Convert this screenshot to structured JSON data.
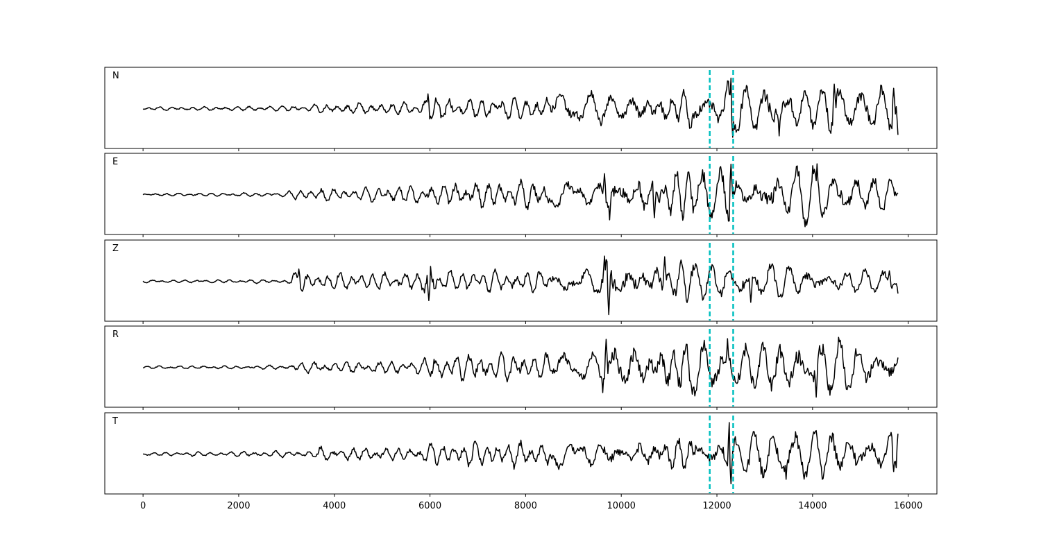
{
  "chart_data": {
    "type": "line",
    "title": "",
    "xlabel": "",
    "ylabel": "",
    "xlim": [
      -800,
      16600
    ],
    "x_ticks": [
      0,
      2000,
      4000,
      6000,
      8000,
      10000,
      12000,
      14000,
      16000
    ],
    "x_tick_labels": [
      "0",
      "2000",
      "4000",
      "6000",
      "8000",
      "10000",
      "12000",
      "14000",
      "16000"
    ],
    "x_range": [
      0,
      15800
    ],
    "grid": false,
    "legend": "none",
    "trace_color": "#000000",
    "marker_color": "#00bfbf",
    "vertical_markers": [
      11850,
      12340
    ],
    "series": [
      {
        "name": "N",
        "envelope": [
          [
            0,
            0.05
          ],
          [
            3000,
            0.08
          ],
          [
            4000,
            0.15
          ],
          [
            5800,
            0.18
          ],
          [
            5950,
            0.45
          ],
          [
            6500,
            0.3
          ],
          [
            8000,
            0.35
          ],
          [
            9000,
            0.45
          ],
          [
            10000,
            0.5
          ],
          [
            11500,
            0.55
          ],
          [
            12000,
            0.55
          ],
          [
            12300,
            0.85
          ],
          [
            12400,
            0.6
          ],
          [
            13500,
            0.75
          ],
          [
            15800,
            0.7
          ]
        ],
        "peaks": [
          [
            5960,
            0.42
          ],
          [
            12290,
            0.87
          ],
          [
            12330,
            -0.82
          ],
          [
            13300,
            -0.78
          ],
          [
            14450,
            0.7
          ],
          [
            15700,
            0.58
          ],
          [
            15800,
            -0.75
          ]
        ]
      },
      {
        "name": "E",
        "envelope": [
          [
            0,
            0.04
          ],
          [
            3000,
            0.06
          ],
          [
            3200,
            0.18
          ],
          [
            4500,
            0.2
          ],
          [
            6000,
            0.3
          ],
          [
            7500,
            0.4
          ],
          [
            9500,
            0.42
          ],
          [
            9700,
            0.7
          ],
          [
            11000,
            0.75
          ],
          [
            12000,
            0.72
          ],
          [
            12300,
            0.85
          ],
          [
            12400,
            0.6
          ],
          [
            14000,
            0.85
          ],
          [
            15800,
            0.5
          ]
        ],
        "peaks": [
          [
            9650,
            0.6
          ],
          [
            9750,
            -0.72
          ],
          [
            10700,
            -0.66
          ],
          [
            12290,
            0.87
          ],
          [
            14100,
            0.88
          ],
          [
            15800,
            0.05
          ]
        ]
      },
      {
        "name": "Z",
        "envelope": [
          [
            0,
            0.04
          ],
          [
            3000,
            0.06
          ],
          [
            3200,
            0.35
          ],
          [
            3400,
            0.25
          ],
          [
            5800,
            0.25
          ],
          [
            6000,
            0.6
          ],
          [
            6300,
            0.3
          ],
          [
            9500,
            0.35
          ],
          [
            9700,
            0.9
          ],
          [
            10000,
            0.6
          ],
          [
            11000,
            0.65
          ],
          [
            13500,
            0.45
          ],
          [
            15800,
            0.3
          ]
        ],
        "peaks": [
          [
            3250,
            0.35
          ],
          [
            5980,
            -0.55
          ],
          [
            9650,
            0.72
          ],
          [
            9730,
            -0.95
          ],
          [
            10900,
            0.7
          ],
          [
            12700,
            -0.6
          ],
          [
            15600,
            0.3
          ],
          [
            15800,
            -0.35
          ]
        ]
      },
      {
        "name": "R",
        "envelope": [
          [
            0,
            0.04
          ],
          [
            3000,
            0.06
          ],
          [
            3200,
            0.15
          ],
          [
            5800,
            0.2
          ],
          [
            6000,
            0.4
          ],
          [
            8000,
            0.4
          ],
          [
            9500,
            0.4
          ],
          [
            9700,
            0.85
          ],
          [
            11000,
            0.75
          ],
          [
            12200,
            0.8
          ],
          [
            12400,
            0.7
          ],
          [
            14000,
            0.85
          ],
          [
            15800,
            0.55
          ]
        ],
        "peaks": [
          [
            9620,
            -0.72
          ],
          [
            9690,
            0.8
          ],
          [
            12230,
            0.82
          ],
          [
            14080,
            -0.85
          ],
          [
            15800,
            0.28
          ]
        ]
      },
      {
        "name": "T",
        "envelope": [
          [
            0,
            0.05
          ],
          [
            3600,
            0.1
          ],
          [
            3700,
            0.2
          ],
          [
            5800,
            0.2
          ],
          [
            6000,
            0.35
          ],
          [
            9000,
            0.4
          ],
          [
            10000,
            0.5
          ],
          [
            12000,
            0.5
          ],
          [
            12250,
            0.9
          ],
          [
            12400,
            0.6
          ],
          [
            13500,
            0.8
          ],
          [
            15800,
            0.6
          ]
        ],
        "peaks": [
          [
            12260,
            0.9
          ],
          [
            12290,
            -0.85
          ],
          [
            13450,
            -0.72
          ],
          [
            15700,
            -0.5
          ],
          [
            15800,
            0.58
          ]
        ]
      }
    ]
  }
}
